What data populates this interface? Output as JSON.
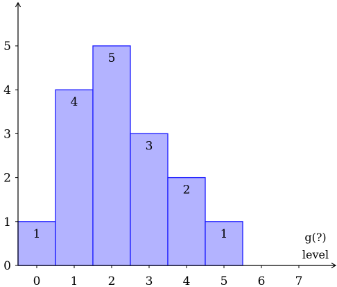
{
  "chart_data": {
    "type": "bar",
    "categories": [
      "0",
      "1",
      "2",
      "3",
      "4",
      "5"
    ],
    "values": [
      1,
      4,
      5,
      3,
      2,
      1
    ],
    "data_labels": [
      "1",
      "4",
      "5",
      "3",
      "2",
      "1"
    ],
    "x_ticks": [
      "0",
      "1",
      "2",
      "3",
      "4",
      "5",
      "6",
      "7"
    ],
    "y_ticks": [
      "0",
      "1",
      "2",
      "3",
      "4",
      "5"
    ],
    "xlim": [
      -0.5,
      8.2
    ],
    "ylim": [
      0,
      6
    ],
    "xlabel": "level",
    "x_annotation": "g(?)",
    "ylabel": "",
    "grid": false,
    "colors": {
      "bar_fill": "#b3b3ff",
      "bar_stroke": "#1a1aff",
      "axis": "#000000"
    }
  }
}
